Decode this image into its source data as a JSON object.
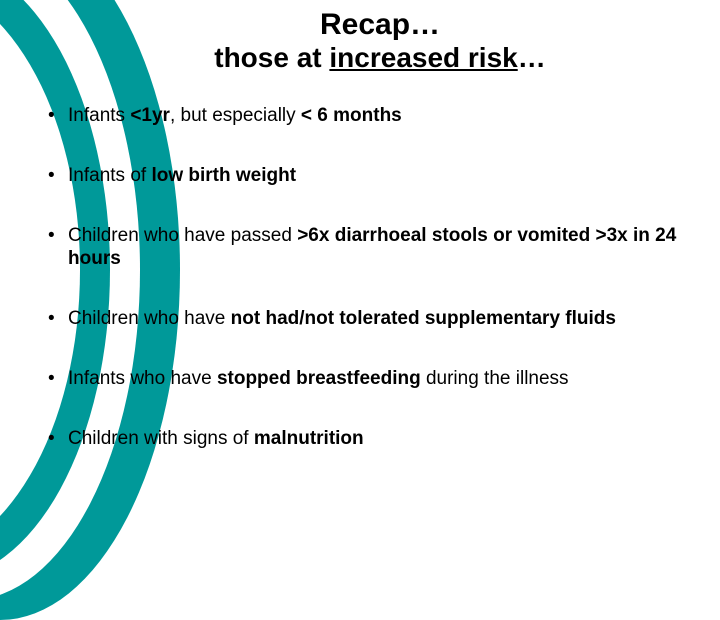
{
  "slide": {
    "title_line1": "Recap…",
    "title_line2_prefix": "those at ",
    "title_line2_underlined": "increased risk",
    "title_line2_suffix": "…",
    "accent_color": "#009999",
    "background_color": "#ffffff",
    "bullets": [
      {
        "pre": "Infants ",
        "bold1": "<1yr",
        "mid": ", but especially ",
        "bold2": "< 6 months",
        "post": ""
      },
      {
        "pre": "Infants of ",
        "bold1": "low birth weight",
        "mid": "",
        "bold2": "",
        "post": ""
      },
      {
        "pre": "Children who have passed ",
        "bold1": ">6x diarrhoeal stools or vomited >3x in 24 hours",
        "mid": "",
        "bold2": "",
        "post": ""
      },
      {
        "pre": "Children who have ",
        "bold1": "not had/not tolerated supplementary fluids",
        "mid": "",
        "bold2": "",
        "post": ""
      },
      {
        "pre": "Infants who have ",
        "bold1": "stopped breastfeeding",
        "mid": " during the illness",
        "bold2": "",
        "post": ""
      },
      {
        "pre": "Children with signs of ",
        "bold1": "malnutrition",
        "mid": "",
        "bold2": "",
        "post": ""
      }
    ]
  }
}
